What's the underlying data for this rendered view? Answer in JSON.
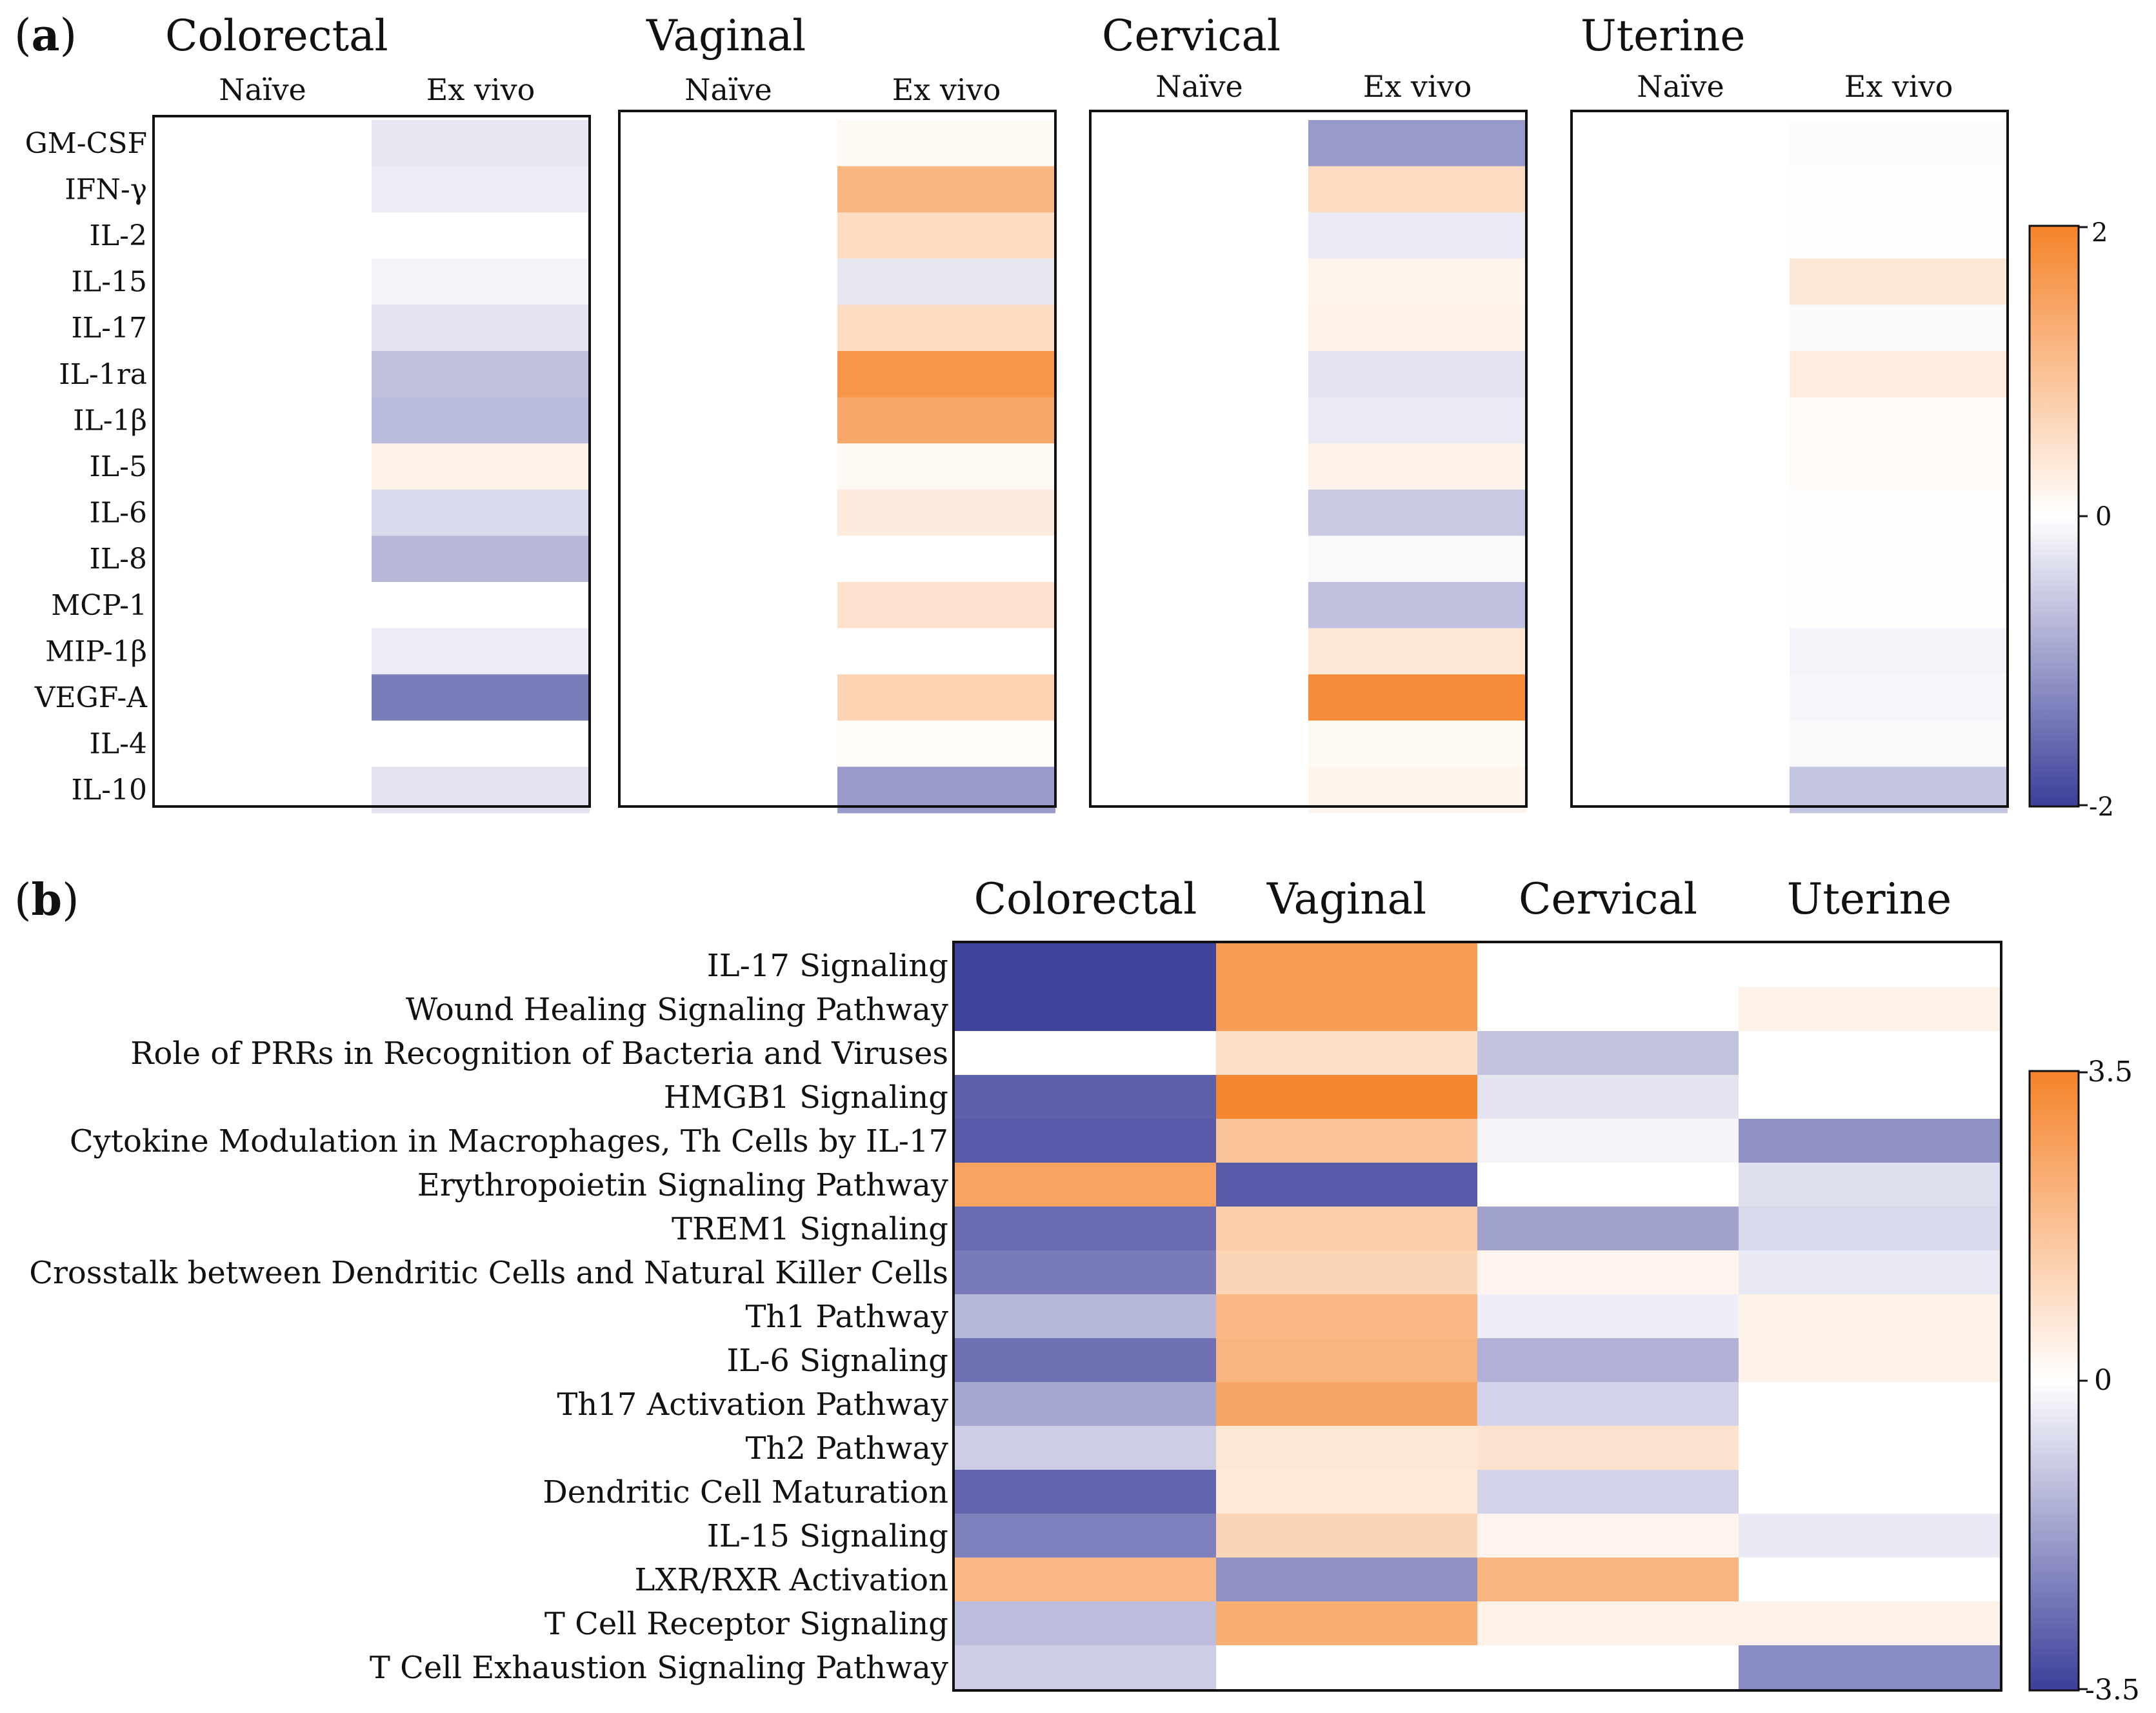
{
  "chart_data": [
    {
      "type": "heatmap",
      "panel_label": "(a)",
      "panel_letter": "a",
      "column_labels": [
        "Naïve",
        "Ex vivo"
      ],
      "rows": [
        "GM-CSF",
        "IFN-γ",
        "IL-2",
        "IL-15",
        "IL-17",
        "IL-1ra",
        "IL-1β",
        "IL-5",
        "IL-6",
        "IL-8",
        "MCP-1",
        "MIP-1β",
        "VEGF-A",
        "IL-4",
        "IL-10"
      ],
      "colorbar": {
        "min": -2,
        "max": 2,
        "ticks": [
          "2",
          "0",
          "-2"
        ],
        "colors": {
          "low": "#3b3f99",
          "mid": "#ffffff",
          "high": "#f5832a"
        }
      },
      "tissues": [
        {
          "name": "Colorectal",
          "naive": [
            0,
            0,
            0,
            0,
            0,
            0,
            0,
            0,
            0,
            0,
            0,
            0,
            0,
            0,
            0
          ],
          "ex_vivo": [
            -0.25,
            -0.2,
            0.0,
            -0.12,
            -0.3,
            -0.65,
            -0.7,
            0.22,
            -0.4,
            -0.75,
            0.0,
            -0.2,
            -1.35,
            0.0,
            -0.3
          ]
        },
        {
          "name": "Vaginal",
          "naive": [
            0,
            0,
            0,
            0,
            0,
            0,
            0,
            0,
            0,
            0,
            0,
            0,
            0,
            0,
            0
          ],
          "ex_vivo": [
            0.12,
            1.2,
            0.55,
            -0.25,
            0.55,
            1.7,
            1.4,
            0.12,
            0.32,
            0.0,
            0.48,
            0.0,
            0.72,
            0.05,
            -1.05
          ]
        },
        {
          "name": "Cervical",
          "naive": [
            0,
            0,
            0,
            0,
            0,
            0,
            0,
            0,
            0,
            0,
            0,
            0,
            0,
            0,
            0
          ],
          "ex_vivo": [
            -1.05,
            0.55,
            -0.22,
            0.18,
            0.22,
            -0.3,
            -0.22,
            0.2,
            -0.55,
            -0.05,
            -0.65,
            0.38,
            1.85,
            0.1,
            0.18
          ]
        },
        {
          "name": "Uterine",
          "naive": [
            0,
            0,
            0,
            0,
            0,
            0,
            0,
            0,
            0,
            0,
            0,
            0,
            0,
            0,
            0
          ],
          "ex_vivo": [
            -0.03,
            0.03,
            0.03,
            0.38,
            -0.05,
            0.3,
            0.06,
            0.06,
            0.03,
            0.03,
            0.02,
            -0.12,
            -0.08,
            -0.06,
            -0.6
          ]
        }
      ]
    },
    {
      "type": "heatmap",
      "panel_label": "(b)",
      "panel_letter": "b",
      "columns": [
        "Colorectal",
        "Vaginal",
        "Cervical",
        "Uterine"
      ],
      "rows": [
        "IL-17 Signaling",
        "Wound Healing Signaling Pathway",
        "Role of PRRs in Recognition of Bacteria and Viruses",
        "HMGB1 Signaling",
        "Cytokine Modulation in Macrophages, Th Cells by IL-17",
        "Erythropoietin Signaling Pathway",
        "TREM1 Signaling",
        "Crosstalk between Dendritic Cells and Natural Killer Cells",
        "Th1 Pathway",
        "IL-6 Signaling",
        "Th17 Activation Pathway",
        "Th2 Pathway",
        "Dendritic Cell Maturation",
        "IL-15 Signaling",
        "LXR/RXR Activation",
        "T Cell Receptor Signaling",
        "T Cell Exhaustion Signaling Pathway"
      ],
      "values": [
        [
          -3.4,
          2.8,
          0.0,
          0.0
        ],
        [
          -3.4,
          2.8,
          0.0,
          0.4
        ],
        [
          0.0,
          0.9,
          -1.1,
          0.0
        ],
        [
          -2.9,
          3.4,
          -0.5,
          0.0
        ],
        [
          -3.0,
          1.7,
          -0.2,
          -2.0
        ],
        [
          2.6,
          -3.0,
          0.0,
          -0.6
        ],
        [
          -2.7,
          1.4,
          -1.7,
          -0.7
        ],
        [
          -2.4,
          1.2,
          0.3,
          -0.4
        ],
        [
          -1.3,
          2.0,
          -0.3,
          0.4
        ],
        [
          -2.6,
          2.1,
          -1.4,
          0.4
        ],
        [
          -1.6,
          2.5,
          -0.8,
          0.0
        ],
        [
          -0.9,
          0.7,
          0.8,
          0.0
        ],
        [
          -2.8,
          0.6,
          -0.8,
          0.0
        ],
        [
          -2.3,
          1.2,
          0.3,
          -0.4
        ],
        [
          2.0,
          -2.0,
          2.1,
          0.0
        ],
        [
          -1.2,
          2.3,
          0.4,
          0.4
        ],
        [
          -0.9,
          0.0,
          0.0,
          -2.1
        ]
      ],
      "colorbar": {
        "min": -3.5,
        "max": 3.5,
        "ticks": [
          "3.5",
          "0",
          "-3.5"
        ],
        "colors": {
          "low": "#3b3f99",
          "mid": "#ffffff",
          "high": "#f5832a"
        }
      }
    }
  ]
}
